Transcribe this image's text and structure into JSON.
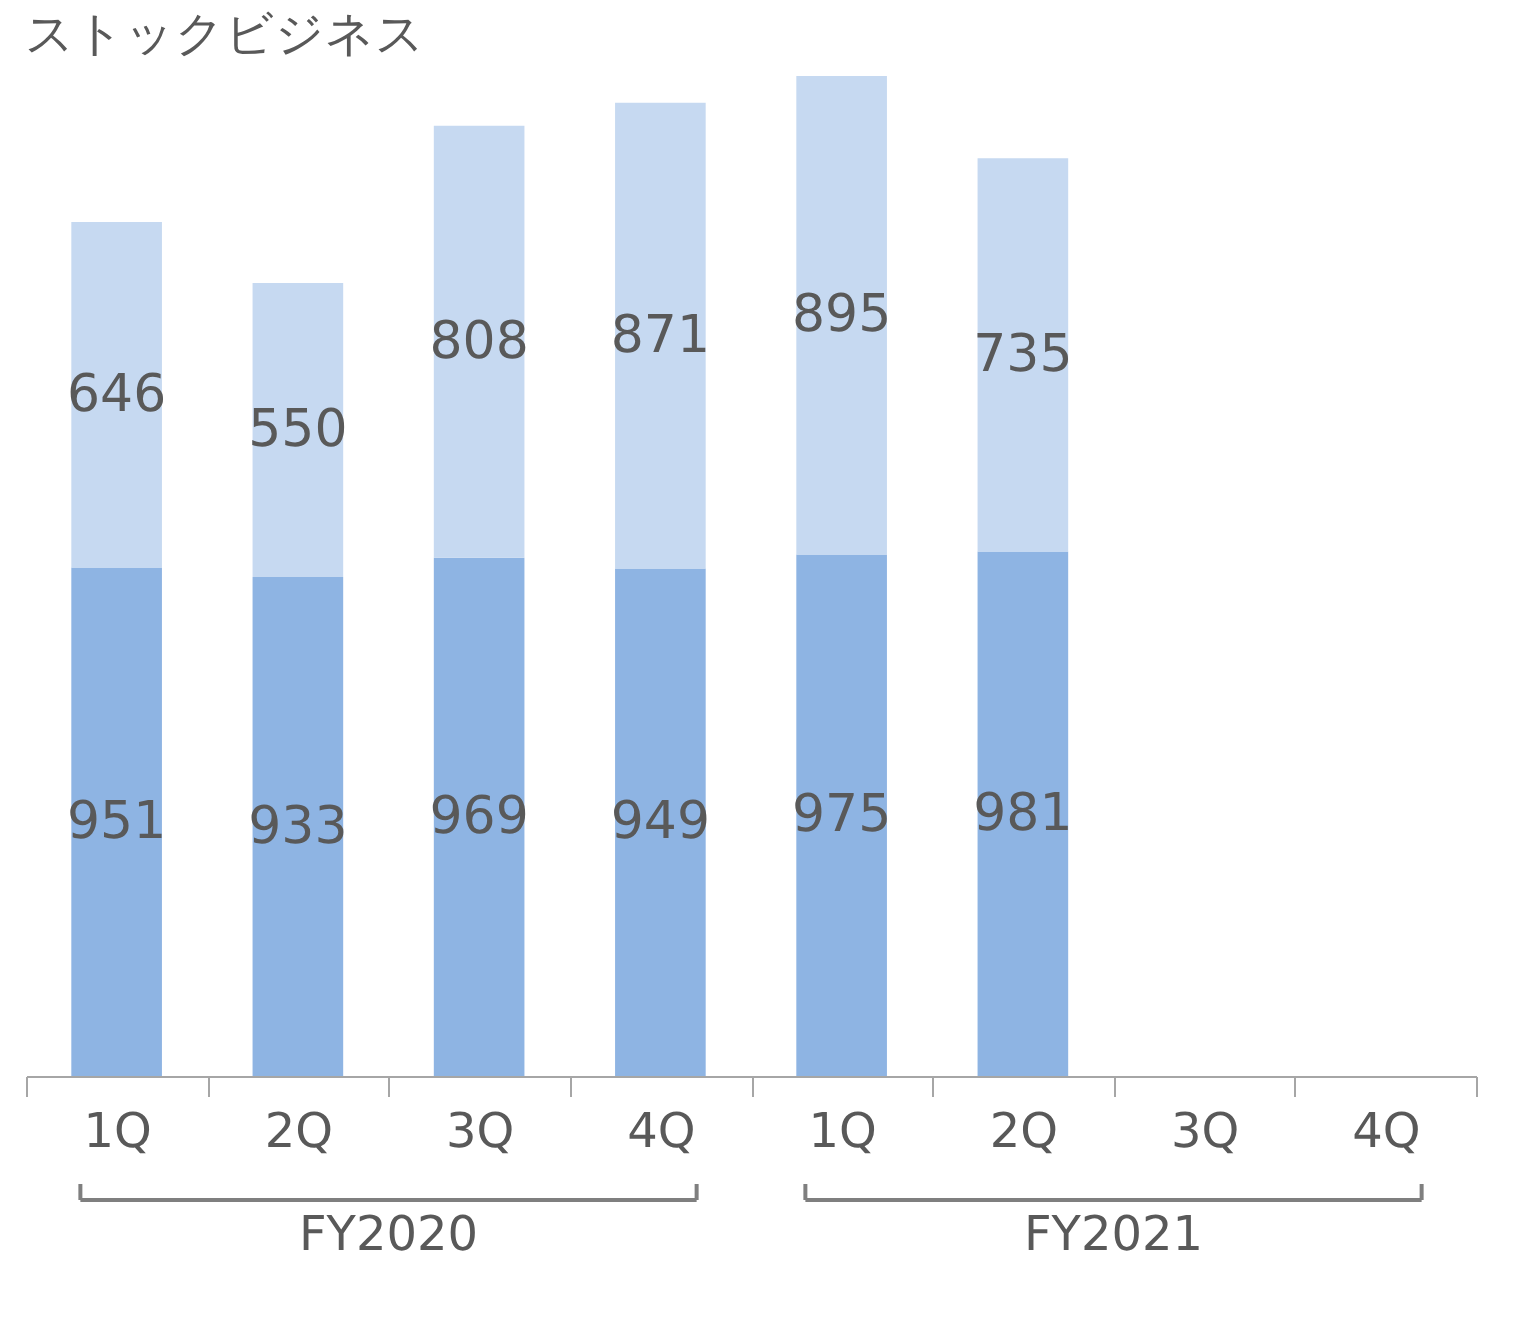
{
  "chart_data": {
    "type": "bar",
    "title": "ストックビジネス",
    "stacked": true,
    "data_labels": true,
    "grid": false,
    "categories": [
      "1Q",
      "2Q",
      "3Q",
      "4Q",
      "1Q",
      "2Q",
      "3Q",
      "4Q"
    ],
    "series": [
      {
        "color": "#8eb4e3",
        "values": [
          951,
          933,
          969,
          949,
          975,
          981,
          null,
          null
        ]
      },
      {
        "color": "#c6d9f1",
        "values": [
          646,
          550,
          808,
          871,
          895,
          735,
          null,
          null
        ]
      }
    ],
    "annotations": [
      "FY2020",
      "FY2021"
    ]
  }
}
